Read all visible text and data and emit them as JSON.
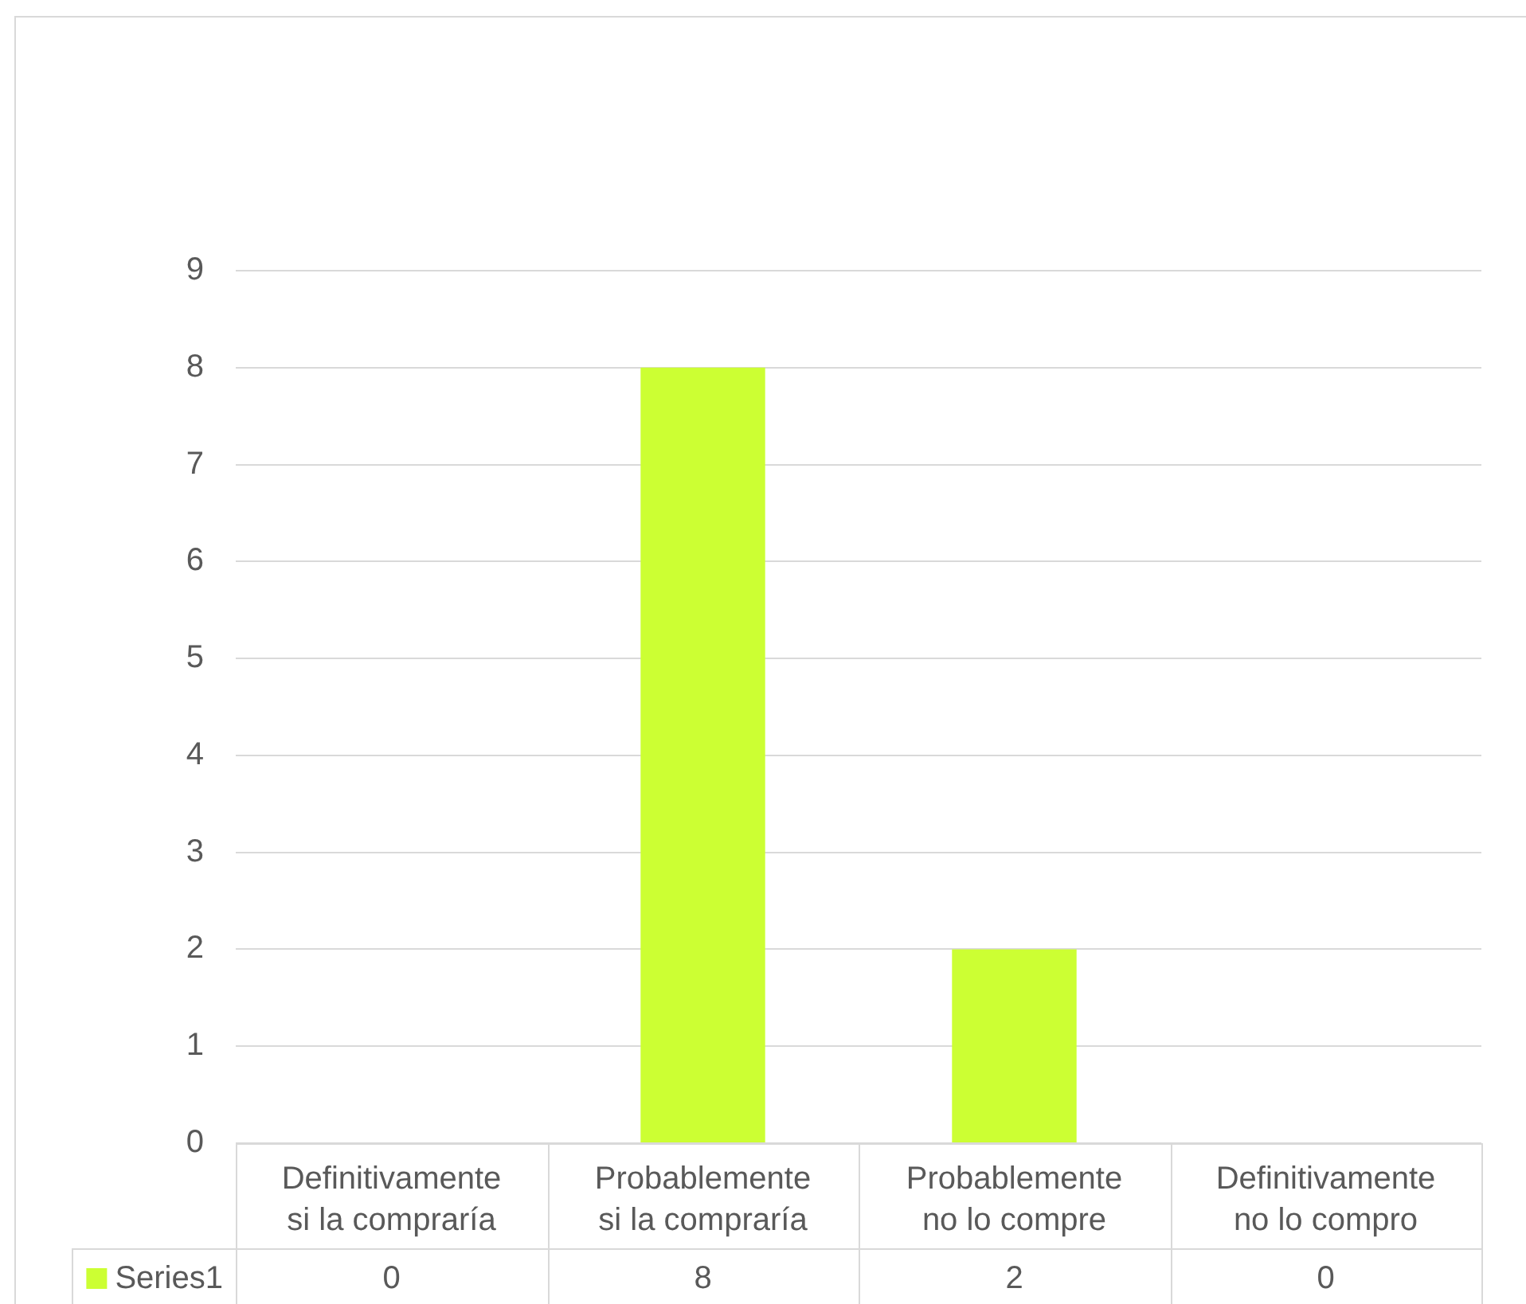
{
  "chart_data": {
    "type": "bar",
    "categories": [
      "Definitivamente si la compraría",
      "Probablemente si la compraría",
      "Probablemente no lo compre",
      "Definitivamente no lo compro"
    ],
    "series": [
      {
        "name": "Series1",
        "color": "#ccff33",
        "values": [
          0,
          8,
          2,
          0
        ]
      }
    ],
    "ylim": [
      0,
      9
    ],
    "yticks": [
      0,
      1,
      2,
      3,
      4,
      5,
      6,
      7,
      8,
      9
    ],
    "grid": "y",
    "legend": "bottom left",
    "data_labels": true
  }
}
